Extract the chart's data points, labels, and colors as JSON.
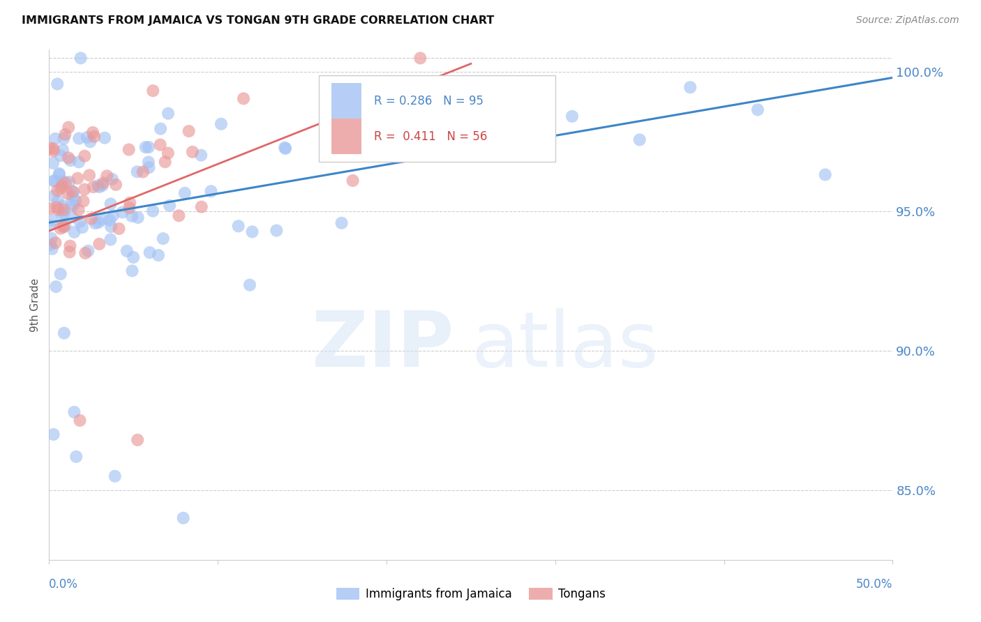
{
  "title": "IMMIGRANTS FROM JAMAICA VS TONGAN 9TH GRADE CORRELATION CHART",
  "source": "Source: ZipAtlas.com",
  "ylabel": "9th Grade",
  "xlim": [
    0.0,
    0.5
  ],
  "ylim": [
    0.825,
    1.008
  ],
  "yticks": [
    0.85,
    0.9,
    0.95,
    1.0
  ],
  "ytick_labels": [
    "85.0%",
    "90.0%",
    "95.0%",
    "100.0%"
  ],
  "xticks": [
    0.0,
    0.1,
    0.2,
    0.3,
    0.4,
    0.5
  ],
  "legend_blue_r": "0.286",
  "legend_blue_n": "95",
  "legend_pink_r": "0.411",
  "legend_pink_n": "56",
  "legend_label_blue": "Immigrants from Jamaica",
  "legend_label_pink": "Tongans",
  "blue_color": "#a4c2f4",
  "pink_color": "#ea9999",
  "blue_line_color": "#3d85c8",
  "pink_line_color": "#e06666",
  "axis_color": "#4a86c8",
  "grid_color": "#cccccc",
  "watermark_zip_color": "#c9daf8",
  "watermark_atlas_color": "#c9daf8"
}
